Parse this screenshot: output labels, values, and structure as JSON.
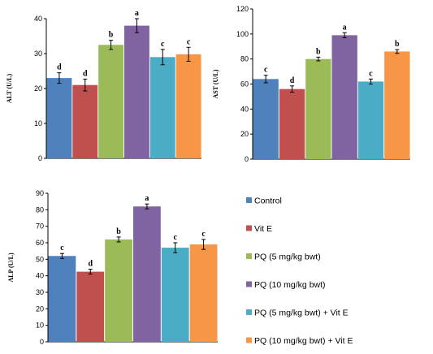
{
  "chart_data": [
    {
      "type": "bar",
      "ylabel": "ALT (U/L)",
      "ylim": [
        0,
        40
      ],
      "yticks": [
        0,
        10,
        20,
        30,
        40
      ],
      "categories": [
        "Control",
        "Vit E",
        "PQ (5 mg/kg bwt)",
        "PQ (10 mg/kg bwt)",
        "PQ (5 mg/kg bwt) + Vit E",
        "PQ (10 mg/kg bwt) + Vit E"
      ],
      "values": [
        23.0,
        21.0,
        32.5,
        38.0,
        29.0,
        29.8
      ],
      "errors": [
        1.5,
        1.7,
        1.3,
        2.0,
        2.2,
        2.0
      ],
      "letters": [
        "d",
        "d",
        "b",
        "a",
        "c",
        "c"
      ]
    },
    {
      "type": "bar",
      "ylabel": "AST (U/L)",
      "ylim": [
        0,
        120
      ],
      "yticks": [
        0,
        20,
        40,
        60,
        80,
        100,
        120
      ],
      "categories": [
        "Control",
        "Vit E",
        "PQ (5 mg/kg bwt)",
        "PQ (10 mg/kg bwt)",
        "PQ (5 mg/kg bwt) + Vit E",
        "PQ (10 mg/kg bwt) + Vit E"
      ],
      "values": [
        64.0,
        56.0,
        80.0,
        99.0,
        62.0,
        86.0
      ],
      "errors": [
        3.0,
        2.5,
        1.5,
        2.0,
        2.0,
        1.5
      ],
      "letters": [
        "c",
        "d",
        "b",
        "a",
        "c",
        "b"
      ]
    },
    {
      "type": "bar",
      "ylabel": "ALP (U/L)",
      "ylim": [
        0,
        90
      ],
      "yticks": [
        0,
        10,
        20,
        30,
        40,
        50,
        60,
        70,
        80,
        90
      ],
      "categories": [
        "Control",
        "Vit E",
        "PQ (5 mg/kg bwt)",
        "PQ (10 mg/kg bwt)",
        "PQ (5 mg/kg bwt) + Vit E",
        "PQ (10 mg/kg bwt) + Vit E"
      ],
      "values": [
        52.0,
        42.5,
        62.0,
        82.0,
        57.0,
        59.0
      ],
      "errors": [
        1.5,
        1.5,
        1.5,
        1.5,
        3.0,
        3.0
      ],
      "letters": [
        "c",
        "d",
        "b",
        "a",
        "c",
        "c"
      ]
    }
  ],
  "legend": [
    {
      "label": "Control",
      "color": "#4F81BD"
    },
    {
      "label": "Vit E",
      "color": "#C0504D"
    },
    {
      "label": "PQ (5 mg/kg bwt)",
      "color": "#9BBB59"
    },
    {
      "label": "PQ (10 mg/kg bwt)",
      "color": "#8064A2"
    },
    {
      "label": "PQ (5 mg/kg bwt) + Vit E",
      "color": "#4BACC6"
    },
    {
      "label": "PQ (10 mg/kg bwt) + Vit E",
      "color": "#F79646"
    }
  ]
}
